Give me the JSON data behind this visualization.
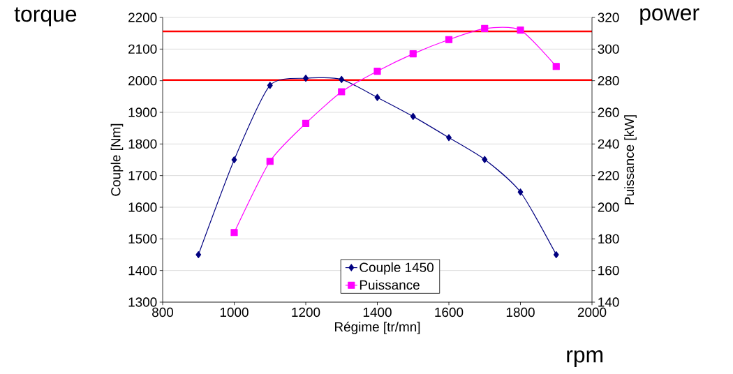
{
  "chart_data": {
    "type": "line",
    "xlabel": "Régime [tr/mn]",
    "ylabel": "Couple [Nm]",
    "y2label": "Puissance [kW]",
    "x": [
      900,
      1000,
      1100,
      1200,
      1300,
      1400,
      1500,
      1600,
      1700,
      1800,
      1900
    ],
    "series": [
      {
        "name": "Couple 1450",
        "color": "#000080",
        "marker": "diamond",
        "values": [
          1450,
          1750,
          1985,
          2008,
          2004,
          1947,
          1887,
          1820,
          1751,
          1648,
          1450
        ]
      },
      {
        "name": "Puissance",
        "color": "#ff00ff",
        "marker": "square",
        "axis": "y2",
        "x": [
          1000,
          1100,
          1200,
          1300,
          1400,
          1500,
          1600,
          1700,
          1800,
          1900
        ],
        "values": [
          184,
          229,
          253,
          273,
          286,
          297,
          306,
          313,
          312,
          289
        ]
      }
    ],
    "xlim": [
      800,
      2000
    ],
    "xticks": [
      800,
      1000,
      1200,
      1400,
      1600,
      1800,
      2000
    ],
    "ylim": [
      1300,
      2200
    ],
    "yticks": [
      1300,
      1400,
      1500,
      1600,
      1700,
      1800,
      1900,
      2000,
      2100,
      2200
    ],
    "y2lim": [
      140,
      320
    ],
    "y2ticks": [
      140,
      160,
      180,
      200,
      220,
      240,
      260,
      280,
      300,
      320
    ],
    "ref_lines": [
      {
        "axis": "y",
        "value": 2156,
        "color": "#ff0000"
      },
      {
        "axis": "y",
        "value": 2002,
        "color": "#ff0000"
      }
    ],
    "annotations": [
      "torque",
      "power",
      "rpm"
    ],
    "grid": "y",
    "legend": "bottom",
    "line_style": "solid"
  }
}
